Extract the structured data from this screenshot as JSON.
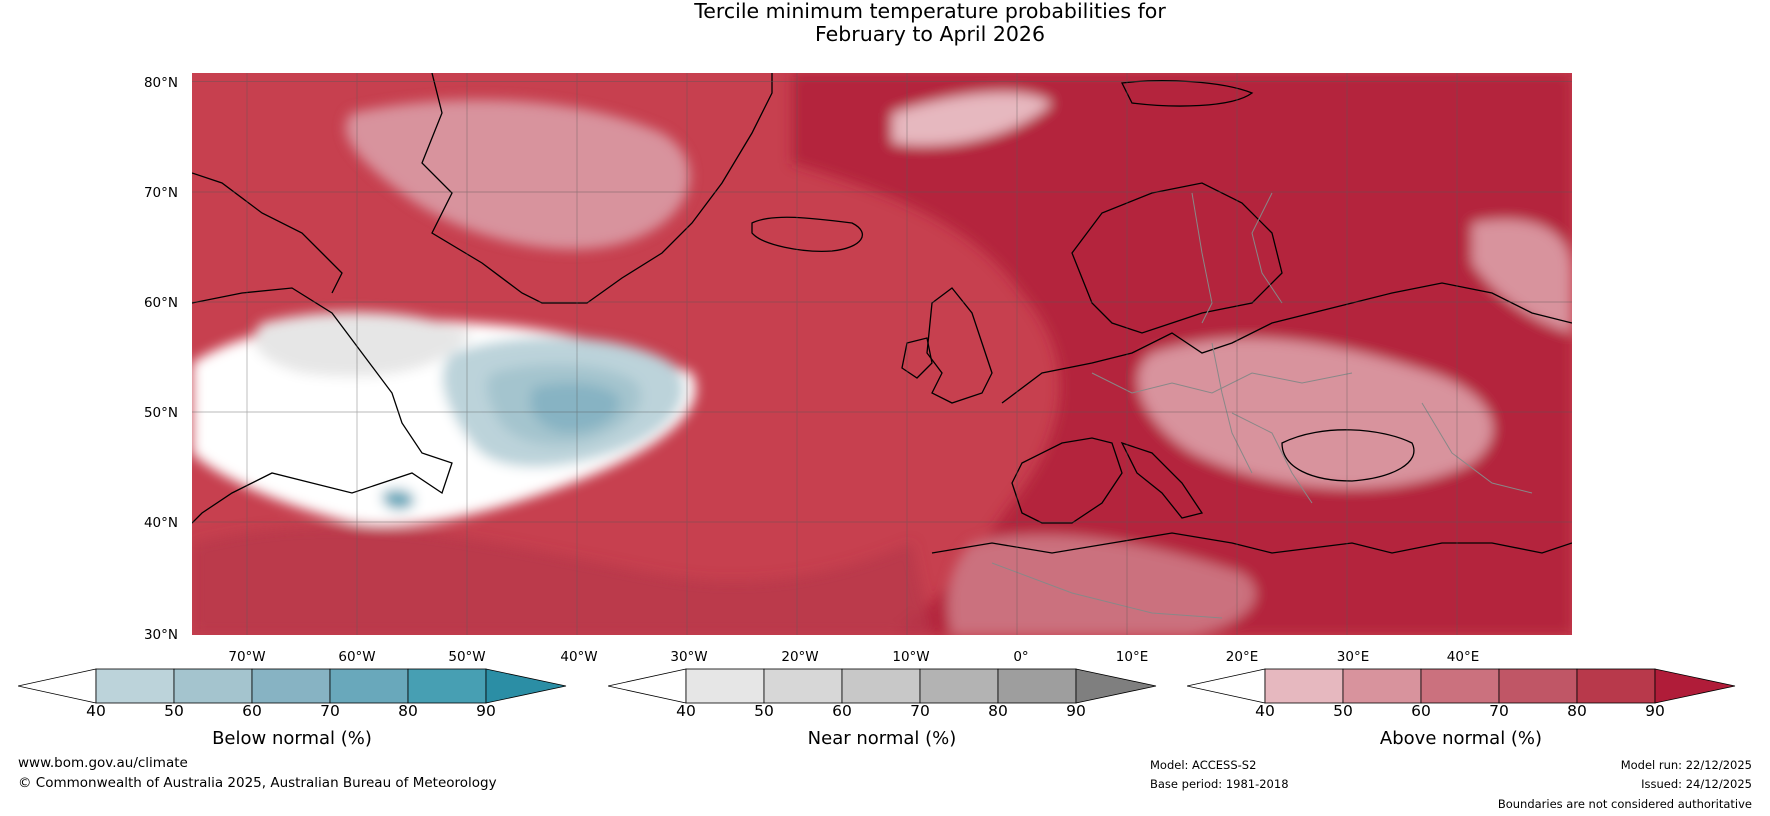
{
  "title": {
    "line1": "Tercile minimum temperature probabilities for",
    "line2": "February to April 2026"
  },
  "map": {
    "lat_labels": [
      "80°N",
      "70°N",
      "60°N",
      "50°N",
      "40°N",
      "30°N"
    ],
    "lon_labels": [
      "70°W",
      "60°W",
      "50°W",
      "40°W",
      "30°W",
      "20°W",
      "10°W",
      "0°",
      "10°E",
      "20°E",
      "30°E",
      "40°E"
    ],
    "colors": {
      "ocean_base": "#c7404f",
      "land_base": "#c94a5b",
      "coastline": "#000000",
      "borders": "#888888",
      "gridlines": "#5a5a5a"
    }
  },
  "colorbars": [
    {
      "label": "Below normal (%)",
      "ticks": [
        "40",
        "50",
        "60",
        "70",
        "80",
        "90"
      ],
      "colors": [
        "#ffffff",
        "#bcd3da",
        "#a4c4ce",
        "#87b3c3",
        "#69a8bb",
        "#479fb3",
        "#2b8ea5"
      ]
    },
    {
      "label": "Near normal (%)",
      "ticks": [
        "40",
        "50",
        "60",
        "70",
        "80",
        "90"
      ],
      "colors": [
        "#ffffff",
        "#e6e6e6",
        "#d7d7d7",
        "#c8c8c8",
        "#b3b3b3",
        "#9e9e9e",
        "#7f7f7f"
      ]
    },
    {
      "label": "Above normal (%)",
      "ticks": [
        "40",
        "50",
        "60",
        "70",
        "80",
        "90"
      ],
      "colors": [
        "#ffffff",
        "#e6b8bf",
        "#d8939d",
        "#cb717e",
        "#c05666",
        "#b8394b",
        "#b01c39"
      ]
    }
  ],
  "footer": {
    "website": "www.bom.gov.au/climate",
    "copyright": "© Commonwealth of Australia 2025, Australian Bureau of Meteorology",
    "model": "Model: ACCESS-S2",
    "base_period": "Base period: 1981-2018",
    "model_run": "Model run: 22/12/2025",
    "issued": "Issued: 24/12/2025",
    "disclaimer": "Boundaries are not considered authoritative"
  }
}
